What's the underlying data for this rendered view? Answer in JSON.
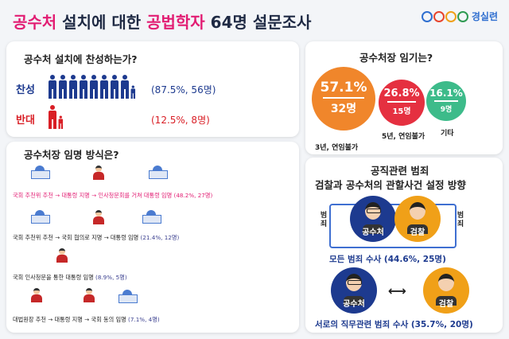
{
  "title": {
    "part1": "공수처",
    "part2": " 설치에 대한 ",
    "part3": "공법학자",
    "part4": " 64명 설문조사"
  },
  "logo": {
    "name": "경실련"
  },
  "support": {
    "question": "공수처 설치에 찬성하는가?",
    "yes_label": "찬성",
    "yes_value": "(87.5%, 56명)",
    "yes_icons": 8,
    "no_label": "반대",
    "no_value": "(12.5%, 8명)",
    "no_icons": 1
  },
  "method": {
    "question": "공수처장 임명 방식은?",
    "routes": [
      {
        "text": "국회 추천위 추천 → 대통령 지명 → 인사청문회를 거쳐 대통령 임명",
        "pct": "(48.2%, 27명)"
      },
      {
        "text": "국회 추천위 추천 → 국회 협의로 지명 → 대통령 임명",
        "pct": "(21.4%, 12명)"
      },
      {
        "text": "국회 인사청문을 통한 대통령 임명",
        "pct": "(8.9%, 5명)"
      },
      {
        "text": "대법원장 추천 → 대통령 지명 → 국회 동의 임명",
        "pct": "(7.1%, 4명)"
      }
    ]
  },
  "term": {
    "question": "공수처장 임기는?",
    "items": [
      {
        "pct": "57.1%",
        "count": "32명",
        "label": "3년, 연임불가",
        "color": "#f0862b"
      },
      {
        "pct": "26.8%",
        "count": "15명",
        "label": "5년, 연임불가",
        "color": "#e53040"
      },
      {
        "pct": "16.1%",
        "count": "9명",
        "label": "기타",
        "color": "#3dbb8a"
      }
    ]
  },
  "jurisdiction": {
    "title_line1": "공직관련 범죄",
    "title_line2": "검찰과 공수처의 관할사건 설정 방향",
    "left_side": "범죄",
    "right_side": "범죄",
    "agency1": "공수처",
    "agency2": "검찰",
    "opt1": "모든 범죄 수사 (44.6%, 25명)",
    "opt2": "서로의 직무관련 범죄 수사 (35.7%, 20명)",
    "colors": {
      "navy": "#1d3a8f",
      "orange": "#f0a018"
    }
  }
}
